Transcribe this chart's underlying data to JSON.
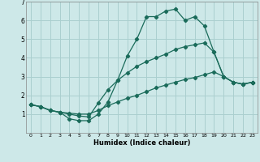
{
  "title": "",
  "xlabel": "Humidex (Indice chaleur)",
  "xlim": [
    -0.5,
    23.5
  ],
  "ylim": [
    0,
    7
  ],
  "xticks": [
    0,
    1,
    2,
    3,
    4,
    5,
    6,
    7,
    8,
    9,
    10,
    11,
    12,
    13,
    14,
    15,
    16,
    17,
    18,
    19,
    20,
    21,
    22,
    23
  ],
  "yticks": [
    1,
    2,
    3,
    4,
    5,
    6,
    7
  ],
  "bg_color": "#cde8e8",
  "grid_color": "#aacfcf",
  "line_color": "#1a6b5a",
  "line1_x": [
    0,
    1,
    2,
    3,
    4,
    5,
    6,
    7,
    8,
    9,
    10,
    11,
    12,
    13,
    14,
    15,
    16,
    17,
    18,
    19,
    20,
    21,
    22,
    23
  ],
  "line1_y": [
    1.5,
    1.4,
    1.2,
    1.1,
    0.75,
    0.65,
    0.65,
    1.0,
    1.65,
    2.8,
    4.1,
    5.0,
    6.2,
    6.2,
    6.5,
    6.6,
    6.0,
    6.2,
    5.7,
    4.3,
    3.0,
    2.7,
    2.6,
    2.7
  ],
  "line2_x": [
    0,
    1,
    2,
    3,
    4,
    5,
    6,
    7,
    8,
    9,
    10,
    11,
    12,
    13,
    14,
    15,
    16,
    17,
    18,
    19,
    20,
    21,
    22,
    23
  ],
  "line2_y": [
    1.5,
    1.4,
    1.2,
    1.1,
    1.0,
    0.9,
    0.85,
    1.6,
    2.3,
    2.8,
    3.2,
    3.55,
    3.8,
    4.0,
    4.2,
    4.45,
    4.6,
    4.7,
    4.8,
    4.3,
    3.0,
    2.7,
    2.6,
    2.7
  ],
  "line3_x": [
    0,
    1,
    2,
    3,
    4,
    5,
    6,
    7,
    8,
    9,
    10,
    11,
    12,
    13,
    14,
    15,
    16,
    17,
    18,
    19,
    20,
    21,
    22,
    23
  ],
  "line3_y": [
    1.5,
    1.4,
    1.2,
    1.1,
    1.05,
    1.0,
    1.0,
    1.2,
    1.45,
    1.65,
    1.85,
    2.0,
    2.2,
    2.4,
    2.55,
    2.7,
    2.85,
    2.95,
    3.1,
    3.25,
    3.0,
    2.7,
    2.6,
    2.7
  ]
}
